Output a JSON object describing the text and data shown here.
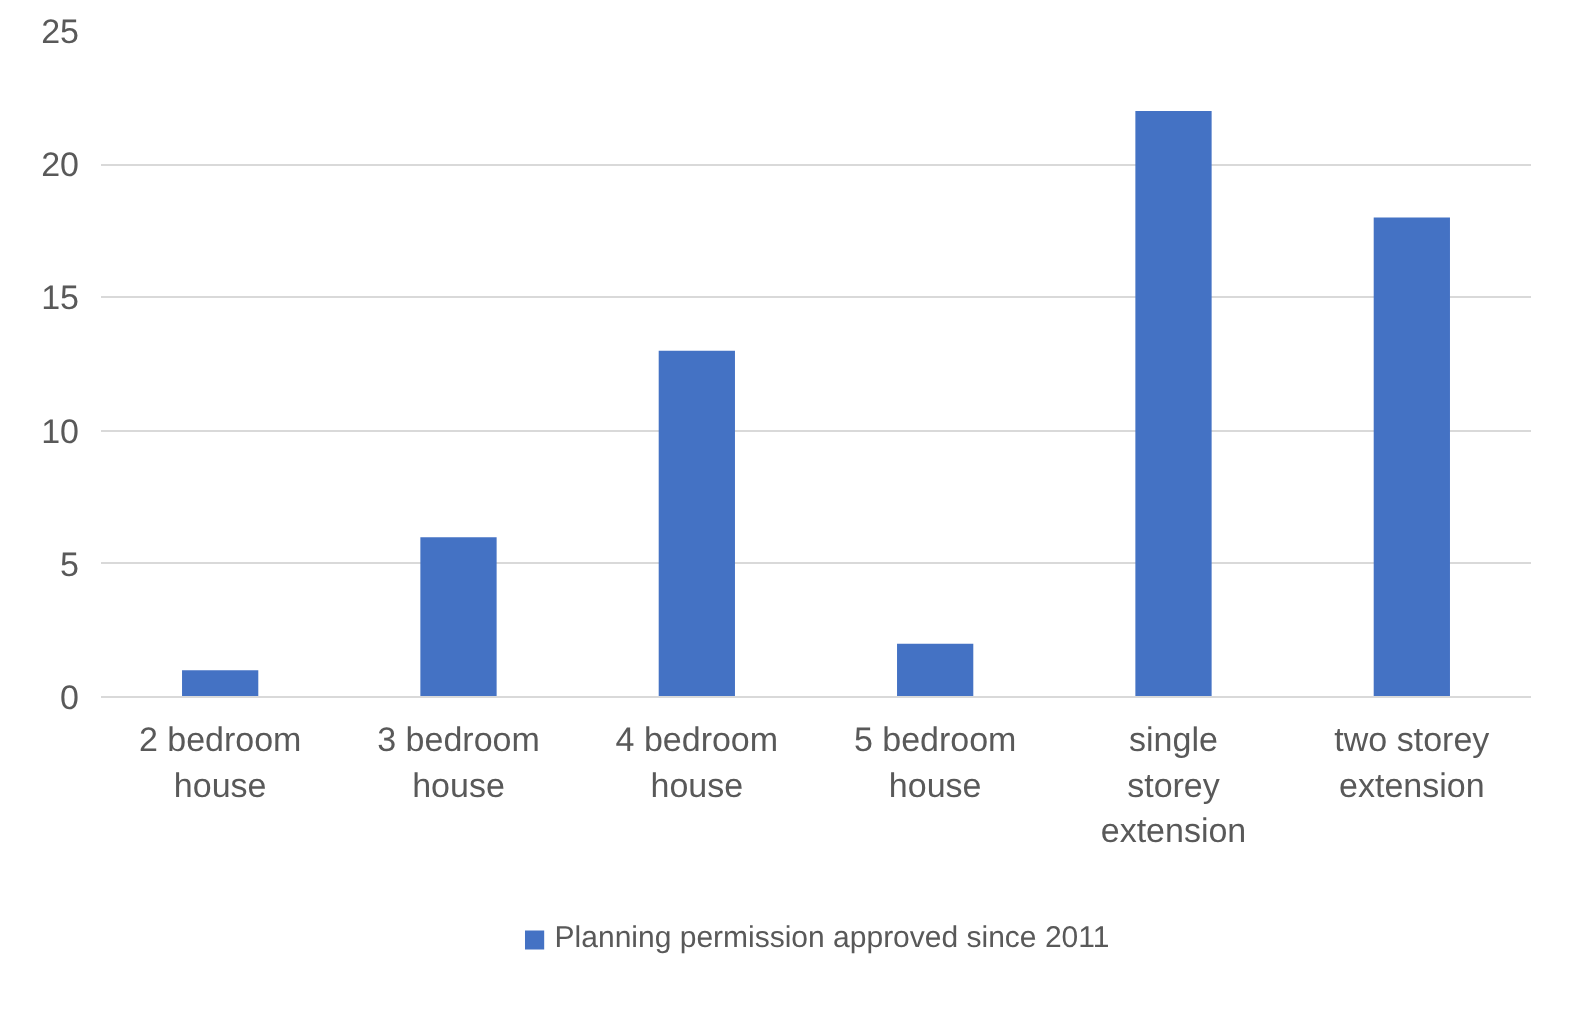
{
  "chart_data": {
    "type": "bar",
    "categories": [
      "2 bedroom house",
      "3 bedroom house",
      "4 bedroom house",
      "5 bedroom house",
      "single storey extension",
      "two storey extension"
    ],
    "series": [
      {
        "name": "Planning permission approved since 2011",
        "color": "#4472c4",
        "values": [
          1,
          6,
          13,
          2,
          22,
          18
        ]
      }
    ],
    "ylim": [
      0,
      25
    ],
    "yticks": [
      0,
      5,
      10,
      15,
      20,
      25
    ],
    "grid": "y",
    "legend": "bottom"
  }
}
